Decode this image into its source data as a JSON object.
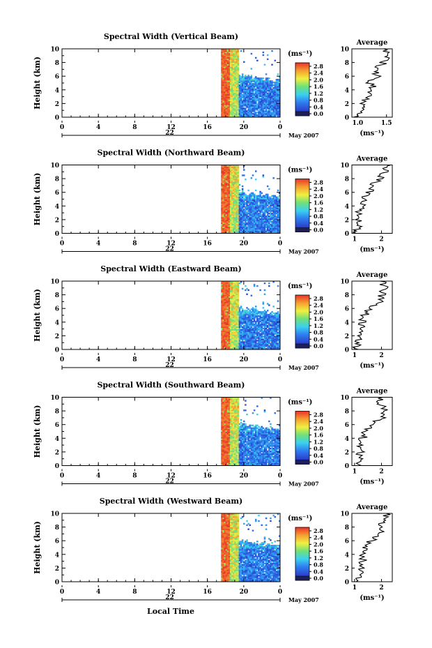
{
  "figure": {
    "xlabel": "Local Time",
    "date_label": "May 2007",
    "day_label": "22",
    "colorbar_unit": "(ms⁻¹)",
    "avg_title": "Average",
    "avg_xlabel": "(ms⁻¹)",
    "ylabel": "Height (km)"
  },
  "chart_data": [
    {
      "type": "heatmap",
      "title": "Spectral Width (Vertical Beam)",
      "ylabel": "Height (km)",
      "xlabel": "Local Time",
      "xlim": [
        0,
        24
      ],
      "ylim": [
        0,
        10
      ],
      "xticks": [
        "0",
        "4",
        "8",
        "12",
        "16",
        "20",
        "0"
      ],
      "yticks": [
        "0",
        "2",
        "4",
        "6",
        "8",
        "10"
      ],
      "colorbar": {
        "unit": "(ms⁻¹)",
        "ticks": [
          "2.8",
          "2.4",
          "2.0",
          "1.6",
          "1.2",
          "0.8",
          "0.4",
          "0.0"
        ],
        "range": [
          0.0,
          2.8
        ]
      },
      "data_window": [
        17.5,
        24
      ],
      "avg_profile": {
        "title": "Average",
        "xlabel": "(ms⁻¹)",
        "xticks": [
          "1.0",
          "1.5"
        ],
        "xlim": [
          0.9,
          1.6
        ],
        "heights": [
          0,
          1,
          2,
          3,
          4,
          5,
          6,
          7,
          8,
          9,
          10
        ],
        "values": [
          1.0,
          1.05,
          1.1,
          1.15,
          1.3,
          1.2,
          1.35,
          1.3,
          1.45,
          1.5,
          1.45
        ]
      }
    },
    {
      "type": "heatmap",
      "title": "Spectral Width (Northward Beam)",
      "ylabel": "Height (km)",
      "xlim": [
        0,
        24
      ],
      "ylim": [
        0,
        10
      ],
      "xticks": [
        "0",
        "4",
        "8",
        "12",
        "16",
        "20",
        "0"
      ],
      "yticks": [
        "0",
        "2",
        "4",
        "6",
        "8",
        "10"
      ],
      "colorbar": {
        "unit": "(ms⁻¹)",
        "ticks": [
          "2.8",
          "2.4",
          "2.0",
          "1.6",
          "1.2",
          "0.8",
          "0.4",
          "0.0"
        ],
        "range": [
          0.0,
          2.8
        ]
      },
      "data_window": [
        17.5,
        24
      ],
      "avg_profile": {
        "title": "Average",
        "xlabel": "(ms⁻¹)",
        "xticks": [
          "1",
          "2"
        ],
        "xlim": [
          0.9,
          2.4
        ],
        "heights": [
          0,
          1,
          2,
          3,
          4,
          5,
          6,
          7,
          8,
          9,
          10
        ],
        "values": [
          1.1,
          1.15,
          1.1,
          1.2,
          1.25,
          1.3,
          1.5,
          1.7,
          1.9,
          2.1,
          2.2
        ]
      }
    },
    {
      "type": "heatmap",
      "title": "Spectral Width (Eastward Beam)",
      "ylabel": "Height (km)",
      "xlim": [
        0,
        24
      ],
      "ylim": [
        0,
        10
      ],
      "xticks": [
        "0",
        "4",
        "8",
        "12",
        "16",
        "20",
        "0"
      ],
      "yticks": [
        "0",
        "2",
        "4",
        "6",
        "8",
        "10"
      ],
      "colorbar": {
        "unit": "(ms⁻¹)",
        "ticks": [
          "2.8",
          "2.4",
          "2.0",
          "1.6",
          "1.2",
          "0.8",
          "0.4",
          "0.0"
        ],
        "range": [
          0.0,
          2.8
        ]
      },
      "data_window": [
        17.5,
        24
      ],
      "avg_profile": {
        "title": "Average",
        "xlabel": "(ms⁻¹)",
        "xticks": [
          "1",
          "2"
        ],
        "xlim": [
          0.9,
          2.4
        ],
        "heights": [
          0,
          1,
          2,
          3,
          4,
          5,
          6,
          7,
          8,
          9,
          10
        ],
        "values": [
          1.1,
          1.1,
          1.15,
          1.2,
          1.3,
          1.35,
          1.6,
          1.9,
          2.0,
          2.1,
          2.0
        ]
      }
    },
    {
      "type": "heatmap",
      "title": "Spectral Width (Southward Beam)",
      "ylabel": "Height (km)",
      "xlim": [
        0,
        24
      ],
      "ylim": [
        0,
        10
      ],
      "xticks": [
        "0",
        "4",
        "8",
        "12",
        "16",
        "20",
        "0"
      ],
      "yticks": [
        "0",
        "2",
        "4",
        "6",
        "8",
        "10"
      ],
      "colorbar": {
        "unit": "(ms⁻¹)",
        "ticks": [
          "2.8",
          "2.4",
          "2.0",
          "1.6",
          "1.2",
          "0.8",
          "0.4",
          "0.0"
        ],
        "range": [
          0.0,
          2.8
        ]
      },
      "data_window": [
        17.5,
        24
      ],
      "avg_profile": {
        "title": "Average",
        "xlabel": "(ms⁻¹)",
        "xticks": [
          "1",
          "2"
        ],
        "xlim": [
          0.9,
          2.4
        ],
        "heights": [
          0,
          1,
          2,
          3,
          4,
          5,
          6,
          7,
          8,
          9,
          10
        ],
        "values": [
          1.1,
          1.15,
          1.2,
          1.25,
          1.3,
          1.4,
          1.6,
          2.0,
          2.1,
          2.0,
          1.9
        ]
      }
    },
    {
      "type": "heatmap",
      "title": "Spectral Width (Westward Beam)",
      "ylabel": "Height (km)",
      "xlim": [
        0,
        24
      ],
      "ylim": [
        0,
        10
      ],
      "xticks": [
        "0",
        "4",
        "8",
        "12",
        "16",
        "20",
        "0"
      ],
      "yticks": [
        "0",
        "2",
        "4",
        "6",
        "8",
        "10"
      ],
      "colorbar": {
        "unit": "(ms⁻¹)",
        "ticks": [
          "2.8",
          "2.4",
          "2.0",
          "1.6",
          "1.2",
          "0.8",
          "0.4",
          "0.0"
        ],
        "range": [
          0.0,
          2.8
        ]
      },
      "data_window": [
        17.5,
        24
      ],
      "avg_profile": {
        "title": "Average",
        "xlabel": "(ms⁻¹)",
        "xticks": [
          "1",
          "2"
        ],
        "xlim": [
          0.9,
          2.4
        ],
        "heights": [
          0,
          1,
          2,
          3,
          4,
          5,
          6,
          7,
          8,
          9,
          10
        ],
        "values": [
          1.1,
          1.15,
          1.2,
          1.3,
          1.3,
          1.4,
          1.6,
          1.9,
          2.0,
          2.1,
          2.2
        ]
      }
    }
  ]
}
